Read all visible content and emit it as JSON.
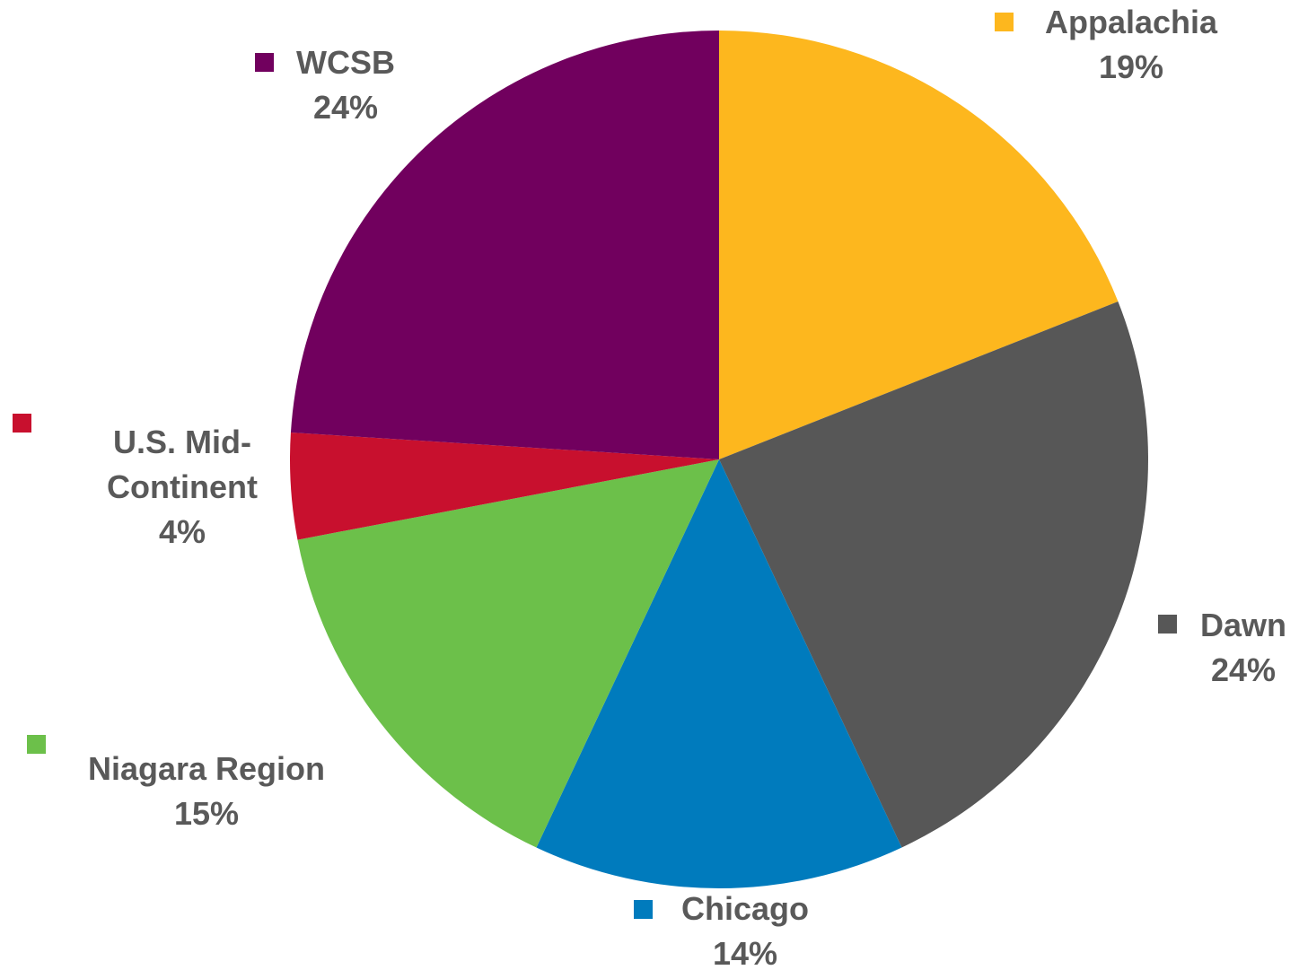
{
  "chart_data": {
    "type": "pie",
    "categories": [
      "Appalachia",
      "Dawn",
      "Chicago",
      "Niagara Region",
      "U.S. Mid-Continent",
      "WCSB"
    ],
    "values": [
      19,
      24,
      14,
      15,
      4,
      24
    ],
    "value_labels": [
      "19%",
      "24%",
      "14%",
      "15%",
      "4%",
      "24%"
    ],
    "colors": [
      "#FDB71E",
      "#575757",
      "#007BBD",
      "#6CC04A",
      "#C8102E",
      "#71005E"
    ]
  }
}
